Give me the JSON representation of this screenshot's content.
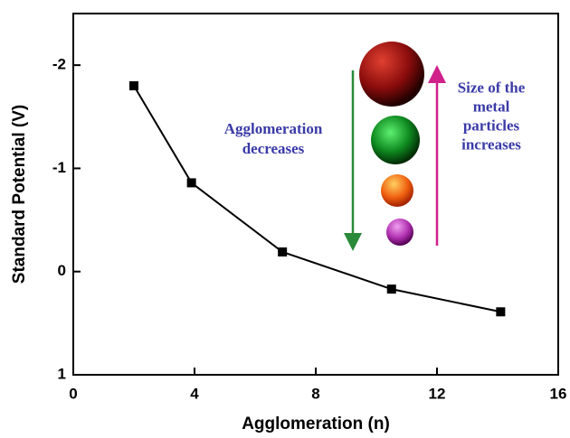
{
  "chart_data": {
    "type": "line",
    "xlabel": "Agglomeration (n)",
    "ylabel": "Standard Potential (V)",
    "x": [
      2,
      3.9,
      6.9,
      10.5,
      14.1
    ],
    "series": [
      {
        "name": null,
        "color": "#000000",
        "values": [
          -1.8,
          -0.86,
          -0.19,
          0.17,
          0.39
        ]
      }
    ],
    "xlim": [
      0,
      16
    ],
    "xticks": [
      0,
      4,
      8,
      12,
      16
    ],
    "ylim": [
      1,
      -2.5
    ],
    "yticks": [
      -2,
      -1,
      0,
      1
    ],
    "annotations": [
      [
        "Agglomeration",
        "decreases"
      ],
      [
        "Size of the",
        "metal",
        "particles",
        "increases"
      ]
    ]
  }
}
